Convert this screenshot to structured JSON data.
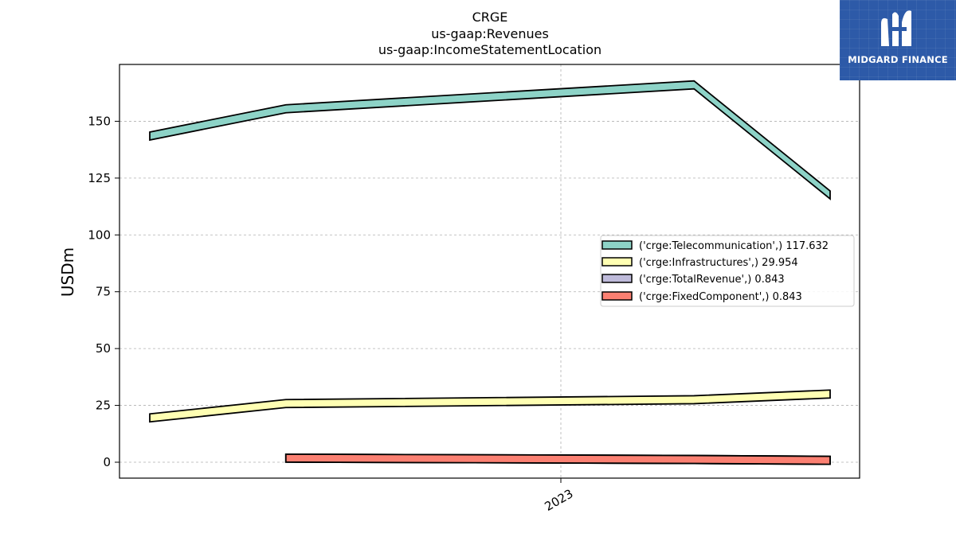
{
  "logo": {
    "text": "MIDGARD FINANCE",
    "icon": "midgard-m-logo-icon",
    "color": "#2d5aa8"
  },
  "chart_data": {
    "type": "area",
    "title_lines": [
      "CRGE",
      "us-gaap:Revenues",
      "us-gaap:IncomeStatementLocation"
    ],
    "ylabel": "USDm",
    "xlabel": "",
    "x_tick_labels": [
      "2023"
    ],
    "y_ticks": [
      0,
      25,
      50,
      75,
      100,
      125,
      150
    ],
    "ylim": [
      -7,
      175
    ],
    "grid": true,
    "legend_position": "center-right",
    "x": [
      "2022-Q1",
      "2022-Q2",
      "2022-Q3",
      "2022-Q4",
      "2023-Q1",
      "2023-Q2"
    ],
    "series": [
      {
        "name": "('crge:Telecommunication',) 117.632",
        "color": "#8dd3c7",
        "values": [
          143.5,
          155.5,
          null,
          null,
          166.0,
          117.6
        ]
      },
      {
        "name": "('crge:Infrastructures',) 29.954",
        "color": "#ffffb3",
        "values": [
          19.5,
          25.8,
          null,
          null,
          27.5,
          30.0
        ]
      },
      {
        "name": "('crge:TotalRevenue',) 0.843",
        "color": "#bebada",
        "values": [
          null,
          1.8,
          null,
          null,
          1.2,
          0.843
        ]
      },
      {
        "name": "('crge:FixedComponent',) 0.843",
        "color": "#fb8072",
        "values": [
          null,
          1.8,
          null,
          null,
          1.2,
          0.843
        ]
      }
    ]
  }
}
